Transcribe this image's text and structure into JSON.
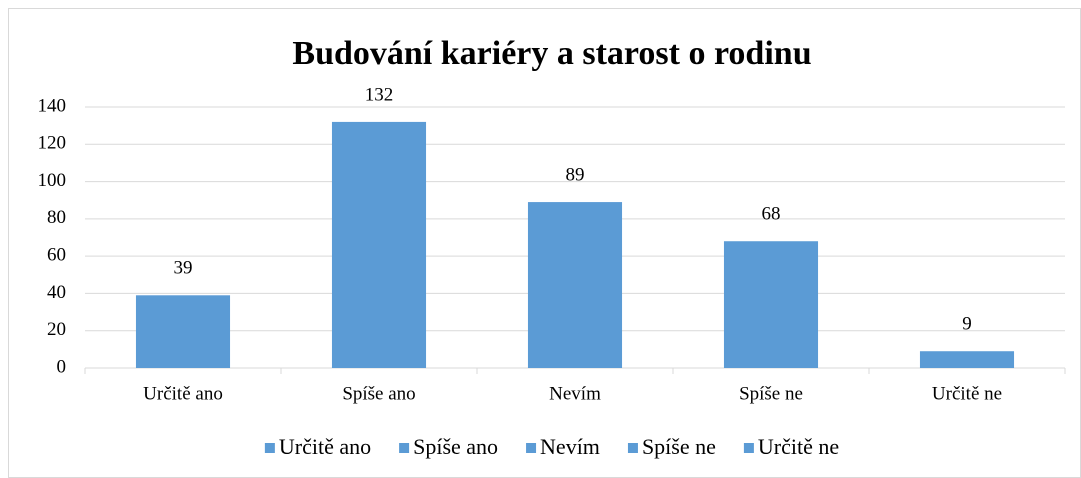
{
  "chart_data": {
    "type": "bar",
    "title": "Budování kariéry a starost o rodinu",
    "categories": [
      "Určitě ano",
      "Spíše ano",
      "Nevím",
      "Spíše ne",
      "Určitě ne"
    ],
    "values": [
      39,
      132,
      89,
      68,
      9
    ],
    "color": "#5b9bd5",
    "ylim": [
      0,
      140
    ],
    "yticks": [
      0,
      20,
      40,
      60,
      80,
      100,
      120,
      140
    ],
    "grid": true,
    "legend": "bottom"
  }
}
